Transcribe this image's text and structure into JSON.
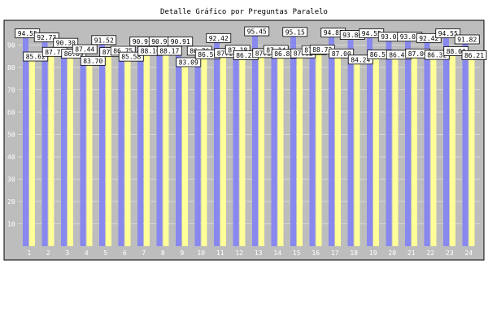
{
  "chart_data": {
    "type": "bar",
    "title": "Detalle Gráfico por Preguntas Paralelo",
    "categories": [
      "1",
      "2",
      "3",
      "4",
      "5",
      "6",
      "7",
      "8",
      "9",
      "10",
      "11",
      "12",
      "13",
      "14",
      "15",
      "16",
      "17",
      "18",
      "19",
      "20",
      "21",
      "22",
      "23",
      "24"
    ],
    "yticks": [
      "10",
      "20",
      "30",
      "40",
      "50",
      "60",
      "70",
      "80",
      "90"
    ],
    "ylim": [
      0,
      100
    ],
    "series": [
      {
        "color": "#8888ee",
        "values": [
          94.55,
          92.73,
          90.3,
          87.44,
          91.52,
          86.75,
          90.91,
          90.91,
          90.91,
          86.76,
          92.42,
          87.18,
          95.45,
          87.14,
          95.15,
          87.02,
          94.85,
          93.8,
          94.55,
          93.03,
          93.03,
          92.42,
          94.55,
          91.82
        ]
      },
      {
        "color": "#ffff99",
        "values": [
          85.62,
          87.71,
          86.89,
          83.7,
          87.58,
          85.58,
          88.1,
          88.17,
          83.09,
          86.56,
          87.18,
          86.21,
          87.14,
          86.83,
          87.02,
          88.73,
          87.0,
          84.24,
          86.51,
          86.41,
          87.0,
          86.32,
          88.0,
          86.21
        ]
      }
    ],
    "grid": true,
    "legend": "none"
  }
}
